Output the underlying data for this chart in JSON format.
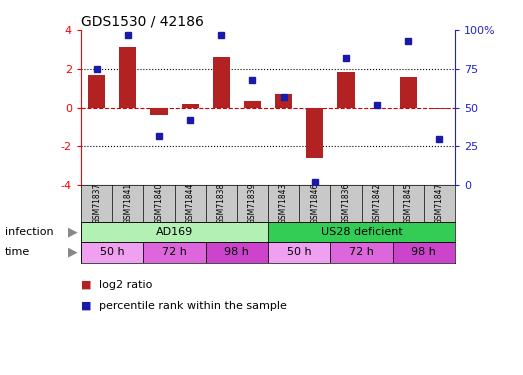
{
  "title": "GDS1530 / 42186",
  "samples": [
    "GSM71837",
    "GSM71841",
    "GSM71840",
    "GSM71844",
    "GSM71838",
    "GSM71839",
    "GSM71843",
    "GSM71846",
    "GSM71836",
    "GSM71842",
    "GSM71845",
    "GSM71847"
  ],
  "log2_ratio": [
    1.7,
    3.1,
    -0.4,
    0.2,
    2.6,
    0.35,
    0.7,
    -2.6,
    1.85,
    0.0,
    1.6,
    -0.05
  ],
  "percentile": [
    75,
    97,
    32,
    42,
    97,
    68,
    57,
    2,
    82,
    52,
    93,
    30
  ],
  "bar_color": "#b22222",
  "dot_color": "#1a1aaa",
  "zero_line_color": "#cc0000",
  "grid_color": "#000000",
  "ylim_left": [
    -4,
    4
  ],
  "ylim_right": [
    0,
    100
  ],
  "yticks_left": [
    -4,
    -2,
    0,
    2,
    4
  ],
  "yticks_right": [
    0,
    25,
    50,
    75,
    100
  ],
  "ytick_labels_right": [
    "0",
    "25",
    "50",
    "75",
    "100%"
  ],
  "infection_groups": [
    {
      "label": "AD169",
      "start": 0,
      "end": 5,
      "color": "#b3f0b3"
    },
    {
      "label": "US28 deficient",
      "start": 6,
      "end": 11,
      "color": "#33cc55"
    }
  ],
  "time_groups": [
    {
      "label": "50 h",
      "start": 0,
      "end": 1,
      "color": "#f0a0f0"
    },
    {
      "label": "72 h",
      "start": 2,
      "end": 3,
      "color": "#dd66dd"
    },
    {
      "label": "98 h",
      "start": 4,
      "end": 5,
      "color": "#cc44cc"
    },
    {
      "label": "50 h",
      "start": 6,
      "end": 7,
      "color": "#f0a0f0"
    },
    {
      "label": "72 h",
      "start": 8,
      "end": 9,
      "color": "#dd66dd"
    },
    {
      "label": "98 h",
      "start": 10,
      "end": 11,
      "color": "#cc44cc"
    }
  ],
  "legend_items": [
    {
      "label": "log2 ratio",
      "color": "#b22222"
    },
    {
      "label": "percentile rank within the sample",
      "color": "#1a1aaa"
    }
  ],
  "bg_color": "#ffffff",
  "ax_bg_color": "#ffffff",
  "sample_row_color": "#c8c8c8",
  "infection_label": "infection",
  "time_label": "time",
  "arrow_color": "#888888"
}
